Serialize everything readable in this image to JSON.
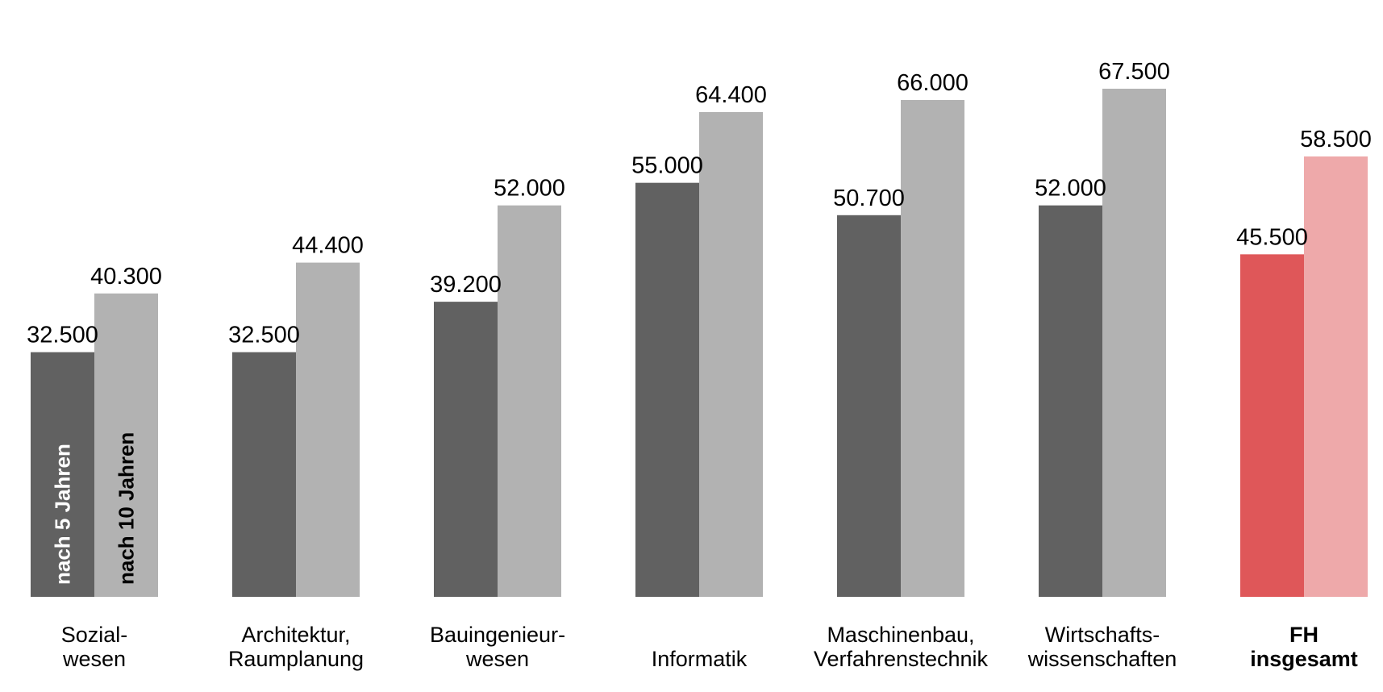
{
  "chart_data": {
    "type": "bar",
    "title": "",
    "xlabel": "",
    "ylabel": "",
    "ylim": [
      0,
      75000
    ],
    "grid": false,
    "categories": [
      "Sozial-\nwesen",
      "Architektur,\nRaumplanung",
      "Bauingenieur-\nwesen",
      "Informatik",
      "Maschinenbau,\nVerfahrenstechnik",
      "Wirtschafts-\nwissenschaften",
      "FH\ninsgesamt"
    ],
    "highlight_category": "FH\ninsgesamt",
    "series": [
      {
        "name": "nach 5 Jahren",
        "values": [
          32500,
          32500,
          39200,
          55000,
          50700,
          52000,
          45500
        ],
        "labels": [
          "32.500",
          "32.500",
          "39.200",
          "55.000",
          "50.700",
          "52.000",
          "45.500"
        ],
        "color": "#616161",
        "highlight_color": "#df5759"
      },
      {
        "name": "nach 10 Jahren",
        "values": [
          40300,
          44400,
          52000,
          64400,
          66000,
          67500,
          58500
        ],
        "labels": [
          "40.300",
          "44.400",
          "52.000",
          "64.400",
          "66.000",
          "67.500",
          "58.500"
        ],
        "color": "#b2b2b2",
        "highlight_color": "#eea9aa"
      }
    ],
    "legend": {
      "placement": "inside-first-bars",
      "orientation": "vertical",
      "series_text_colors": [
        "#ffffff",
        "#000000"
      ]
    }
  }
}
